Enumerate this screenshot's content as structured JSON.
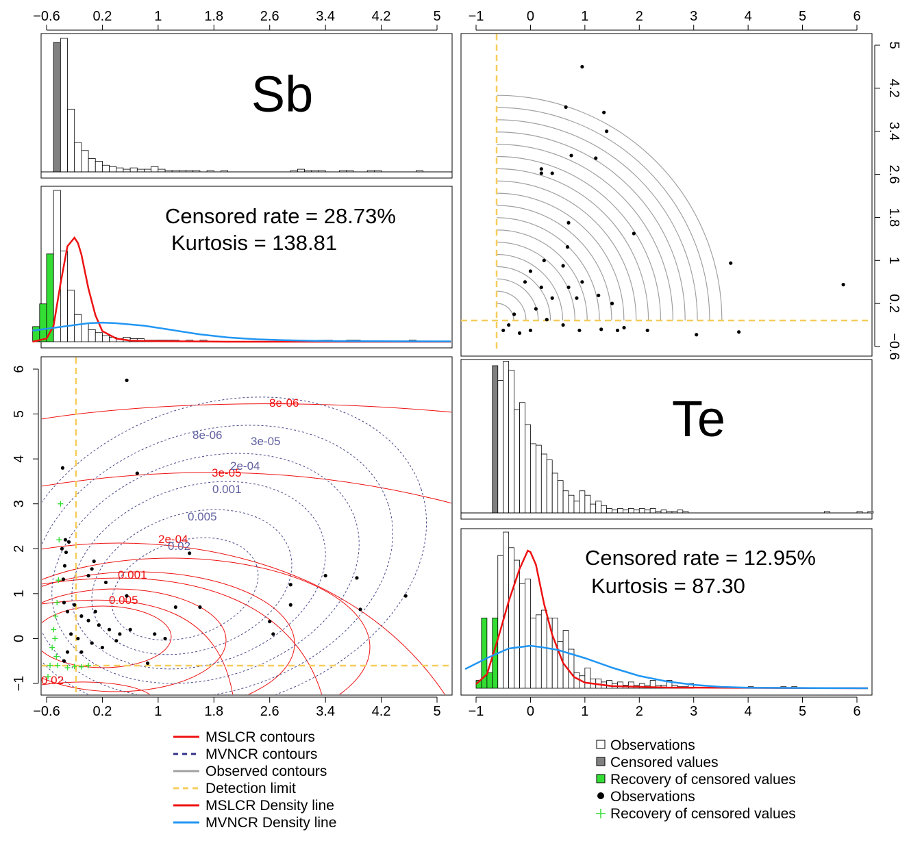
{
  "chart_data": [
    {
      "id": "sb-histogram-observed",
      "type": "bar",
      "title": "Sb",
      "xticks": [
        "-0.6",
        "0.2",
        "1",
        "1.8",
        "2.6",
        "3.4",
        "4.2",
        "5"
      ],
      "xlim": [
        -0.6,
        5.2
      ],
      "bin_width": 0.1,
      "bins_start": -0.5,
      "censored_bins": [
        -0.5
      ],
      "heights": [
        0.97,
        1.0,
        0.47,
        0.22,
        0.16,
        0.1,
        0.08,
        0.05,
        0.04,
        0.03,
        0.02,
        0.03,
        0.02,
        0.02,
        0.04,
        0.02,
        0.01,
        0.01,
        0.01,
        0.01,
        0.01,
        0,
        0.01,
        0,
        0.01,
        0,
        0,
        0,
        0,
        0,
        0,
        0,
        0,
        0,
        0.01,
        0.02,
        0.01,
        0.01,
        0.01,
        0,
        0,
        0.01,
        0.01,
        0,
        0,
        0.01,
        0.01,
        0,
        0,
        0,
        0,
        0,
        0.01
      ]
    },
    {
      "id": "sb-histogram-recovered",
      "type": "bar",
      "annotations": [
        "Censored rate = 28.73%",
        "Kurtosis = 138.81"
      ],
      "bin_width": 0.1,
      "bins_start": -0.8,
      "recovered_bins": [
        -0.8,
        -0.7,
        -0.6
      ],
      "heights": [
        0.1,
        0.25,
        0.58,
        1.0,
        0.6,
        0.34,
        0.18,
        0.12,
        0.08,
        0.06,
        0.04,
        0.03,
        0.02,
        0.03,
        0.02,
        0.02,
        0.01,
        0.01,
        0.01,
        0.01,
        0.01,
        0,
        0.01,
        0,
        0.01,
        0,
        0,
        0,
        0,
        0,
        0,
        0,
        0,
        0,
        0,
        0.01,
        0.01,
        0.01,
        0.01,
        0,
        0,
        0.01,
        0.01,
        0,
        0,
        0.01,
        0.01,
        0,
        0,
        0,
        0,
        0,
        0,
        0,
        0.01
      ],
      "series": [
        {
          "name": "MSLCR Density line",
          "color": "#ee1111",
          "x": [
            -0.8,
            -0.6,
            -0.5,
            -0.4,
            -0.3,
            -0.2,
            -0.15,
            -0.1,
            0.0,
            0.1,
            0.2,
            0.4,
            0.6,
            1.0,
            2.0,
            5.2
          ],
          "y": [
            0.0,
            0.03,
            0.15,
            0.55,
            0.9,
            0.98,
            0.93,
            0.82,
            0.5,
            0.25,
            0.1,
            0.03,
            0.01,
            0.005,
            0.0,
            0.0
          ]
        },
        {
          "name": "MVNCR Density line",
          "color": "#2196f3",
          "x": [
            -0.8,
            -0.4,
            0.0,
            0.2,
            0.4,
            0.8,
            1.2,
            1.6,
            2.0,
            2.4,
            2.8,
            3.2,
            3.6,
            4.0,
            5.2
          ],
          "y": [
            0.09,
            0.12,
            0.15,
            0.155,
            0.15,
            0.13,
            0.095,
            0.06,
            0.035,
            0.02,
            0.012,
            0.008,
            0.005,
            0.004,
            0.003
          ]
        }
      ]
    },
    {
      "id": "sb-te-scatter-contours",
      "type": "scatter",
      "xticks": [
        "-0.6",
        "0.2",
        "1",
        "1.8",
        "2.6",
        "3.4",
        "4.2",
        "5"
      ],
      "yticks": [
        "-1",
        "0",
        "1",
        "2",
        "3",
        "4",
        "5",
        "6"
      ],
      "xlim": [
        -0.6,
        5.2
      ],
      "ylim": [
        -1.2,
        6.2
      ],
      "detection_limit": {
        "x": -0.4,
        "y": -0.6
      },
      "mslcr_contour_labels": [
        "8e-06",
        "3e-05",
        "2e-04",
        "0.001",
        "0.005",
        "0.02"
      ],
      "mvncr_contour_labels": [
        "8e-06",
        "3e-05",
        "2e-04",
        "0.001",
        "0.005",
        "0.02"
      ],
      "observations": [
        [
          0.55,
          5.75
        ],
        [
          -0.37,
          3.8
        ],
        [
          0.7,
          3.68
        ],
        [
          -0.33,
          2.2
        ],
        [
          -0.28,
          2.15
        ],
        [
          -0.38,
          2.0
        ],
        [
          -0.32,
          1.92
        ],
        [
          -0.34,
          1.62
        ],
        [
          -0.36,
          1.32
        ],
        [
          0.08,
          1.72
        ],
        [
          0.05,
          1.55
        ],
        [
          0.0,
          1.4
        ],
        [
          0.25,
          1.25
        ],
        [
          1.45,
          1.9
        ],
        [
          3.85,
          1.35
        ],
        [
          3.4,
          1.4
        ],
        [
          2.9,
          1.2
        ],
        [
          2.9,
          0.75
        ],
        [
          2.6,
          0.38
        ],
        [
          2.65,
          0.1
        ],
        [
          3.9,
          0.65
        ],
        [
          4.55,
          0.95
        ],
        [
          1.25,
          0.7
        ],
        [
          1.6,
          0.7
        ],
        [
          0.55,
          0.95
        ],
        [
          0.95,
          0.1
        ],
        [
          1.1,
          0.0
        ],
        [
          0.85,
          -0.55
        ],
        [
          -0.35,
          0.8
        ],
        [
          -0.3,
          0.6
        ],
        [
          -0.2,
          0.75
        ],
        [
          -0.1,
          0.5
        ],
        [
          0.0,
          0.4
        ],
        [
          0.15,
          0.3
        ],
        [
          0.3,
          0.2
        ],
        [
          0.45,
          0.1
        ],
        [
          0.6,
          0.2
        ],
        [
          -0.25,
          0.1
        ],
        [
          -0.15,
          0.0
        ],
        [
          0.05,
          -0.1
        ],
        [
          0.2,
          -0.2
        ],
        [
          0.4,
          -0.05
        ],
        [
          -0.3,
          -0.3
        ],
        [
          -0.35,
          -0.5
        ],
        [
          -0.1,
          -0.3
        ],
        [
          0.1,
          0.6
        ]
      ],
      "recovered": [
        [
          -0.4,
          3.0
        ],
        [
          -0.42,
          2.2
        ],
        [
          -0.43,
          1.3
        ],
        [
          -0.45,
          0.8
        ],
        [
          -0.47,
          0.5
        ],
        [
          -0.5,
          0.2
        ],
        [
          -0.48,
          0.0
        ],
        [
          -0.52,
          -0.2
        ],
        [
          -0.46,
          -0.4
        ],
        [
          -0.55,
          -0.6
        ],
        [
          -0.58,
          -0.85
        ],
        [
          -0.44,
          -0.6
        ],
        [
          -0.3,
          -0.65
        ],
        [
          -0.2,
          -0.62
        ],
        [
          -0.1,
          -0.63
        ],
        [
          0.0,
          -0.6
        ]
      ]
    },
    {
      "id": "te-sb-scatter-observed",
      "type": "scatter",
      "xticks": [
        "-1",
        "0",
        "1",
        "2",
        "3",
        "4",
        "5",
        "6"
      ],
      "yticks": [
        "-0.6",
        "0.2",
        "1",
        "1.8",
        "2.6",
        "3.4",
        "4.2",
        "5"
      ],
      "xlim": [
        -1.2,
        6.2
      ],
      "ylim": [
        -0.8,
        5.2
      ],
      "detection_limit": {
        "x": -0.6,
        "y": -0.4
      },
      "observations": [
        [
          0.95,
          4.6
        ],
        [
          0.65,
          3.85
        ],
        [
          1.35,
          3.75
        ],
        [
          1.4,
          3.4
        ],
        [
          0.75,
          2.95
        ],
        [
          1.2,
          2.9
        ],
        [
          0.2,
          2.7
        ],
        [
          0.2,
          2.62
        ],
        [
          0.4,
          2.62
        ],
        [
          0.7,
          1.7
        ],
        [
          1.9,
          1.5
        ],
        [
          0.68,
          1.25
        ],
        [
          5.75,
          0.55
        ],
        [
          3.68,
          0.95
        ],
        [
          3.83,
          -0.33
        ],
        [
          3.05,
          -0.38
        ],
        [
          2.15,
          -0.3
        ],
        [
          1.72,
          -0.25
        ],
        [
          1.6,
          -0.3
        ],
        [
          1.3,
          -0.28
        ],
        [
          1.25,
          0.35
        ],
        [
          1.5,
          0.2
        ],
        [
          0.95,
          0.6
        ],
        [
          0.85,
          0.3
        ],
        [
          0.7,
          0.5
        ],
        [
          0.6,
          0.9
        ],
        [
          0.25,
          1.0
        ],
        [
          0.0,
          0.8
        ],
        [
          -0.1,
          0.6
        ],
        [
          0.2,
          0.5
        ],
        [
          0.4,
          0.3
        ],
        [
          0.1,
          0.1
        ],
        [
          -0.3,
          0.0
        ],
        [
          -0.5,
          -0.3
        ],
        [
          -0.4,
          -0.2
        ],
        [
          0.3,
          -0.1
        ],
        [
          0.6,
          -0.2
        ],
        [
          0.9,
          -0.3
        ],
        [
          -0.2,
          -0.35
        ],
        [
          0.0,
          -0.3
        ]
      ],
      "contour_radii": [
        0.35,
        0.6,
        0.85,
        1.1,
        1.35,
        1.6,
        1.85,
        2.1,
        2.35,
        2.6,
        2.85,
        3.1,
        3.35,
        3.6,
        3.85,
        4.1,
        4.35,
        4.6
      ]
    },
    {
      "id": "te-histogram-observed",
      "type": "bar",
      "title": "Te",
      "bin_width": 0.1,
      "bins_start": -0.7,
      "censored_bins": [
        -0.7
      ],
      "heights": [
        1.0,
        0.9,
        1.03,
        0.97,
        0.7,
        0.75,
        0.6,
        0.47,
        0.46,
        0.4,
        0.36,
        0.27,
        0.22,
        0.15,
        0.12,
        0.08,
        0.15,
        0.12,
        0.06,
        0.08,
        0.05,
        0.03,
        0.02,
        0.03,
        0.02,
        0.03,
        0.02,
        0.03,
        0.02,
        0.03,
        0.01,
        0.02,
        0.01,
        0.01,
        0.02,
        0.01,
        0,
        0,
        0,
        0,
        0,
        0,
        0,
        0,
        0,
        0,
        0,
        0,
        0,
        0,
        0,
        0,
        0,
        0,
        0,
        0,
        0,
        0,
        0,
        0,
        0,
        0.01,
        0,
        0,
        0,
        0,
        0,
        0.01,
        0,
        0.01,
        0,
        0,
        0,
        0,
        0,
        0,
        0,
        0,
        0,
        0,
        0,
        0,
        0,
        0,
        0,
        0,
        0,
        0,
        0,
        0,
        0,
        0,
        0,
        0,
        0,
        0,
        0,
        0.01
      ]
    },
    {
      "id": "te-histogram-recovered",
      "type": "bar",
      "annotations": [
        "Censored rate = 12.95%",
        "Kurtosis = 87.30"
      ],
      "bin_width": 0.1,
      "bins_start": -1.0,
      "recovered_bins": [
        -1.0,
        -0.9,
        -0.8,
        -0.7
      ],
      "heights": [
        0.05,
        0.45,
        0.1,
        0.45,
        0.85,
        1.0,
        0.9,
        0.82,
        0.67,
        0.7,
        0.45,
        0.47,
        0.5,
        0.45,
        0.45,
        0.3,
        0.37,
        0.25,
        0.1,
        0.08,
        0.13,
        0.06,
        0.06,
        0.04,
        0.05,
        0.03,
        0.04,
        0.02,
        0.04,
        0.02,
        0.03,
        0.02,
        0.05,
        0.02,
        0.02,
        0.05,
        0.02,
        0.01,
        0.01,
        0.03,
        0,
        0,
        0,
        0,
        0,
        0,
        0,
        0,
        0,
        0,
        0.01,
        0,
        0,
        0,
        0,
        0,
        0.01,
        0,
        0.01,
        0,
        0,
        0,
        0,
        0,
        0,
        0,
        0,
        0,
        0,
        0,
        0,
        0,
        0,
        0,
        0,
        0,
        0,
        0,
        0,
        0,
        0,
        0,
        0,
        0,
        0,
        0,
        0,
        0.01
      ],
      "series": [
        {
          "name": "MSLCR Density line",
          "color": "#ee1111",
          "x": [
            -1.0,
            -0.8,
            -0.6,
            -0.4,
            -0.2,
            -0.05,
            0.0,
            0.1,
            0.25,
            0.4,
            0.6,
            0.8,
            1.0,
            1.5,
            2.5,
            6.2
          ],
          "y": [
            0.03,
            0.1,
            0.35,
            0.62,
            0.85,
            0.98,
            0.97,
            0.88,
            0.6,
            0.38,
            0.18,
            0.08,
            0.04,
            0.015,
            0.005,
            0.0
          ]
        },
        {
          "name": "MVNCR Density line",
          "color": "#2196f3",
          "x": [
            -1.2,
            -0.8,
            -0.4,
            0.0,
            0.2,
            0.5,
            1.0,
            1.5,
            2.0,
            2.5,
            3.0,
            3.5,
            4.0,
            5.0,
            6.2
          ],
          "y": [
            0.14,
            0.22,
            0.29,
            0.31,
            0.3,
            0.28,
            0.22,
            0.15,
            0.09,
            0.05,
            0.025,
            0.01,
            0.004,
            0.002,
            0.0
          ]
        }
      ]
    }
  ],
  "legend_left": [
    {
      "label": "MSLCR contours",
      "color": "#ee1111",
      "style": "solid"
    },
    {
      "label": "MVNCR contours",
      "color": "#333388",
      "style": "dashed"
    },
    {
      "label": "Observed contours",
      "color": "#a0a0a0",
      "style": "solid"
    },
    {
      "label": "Detection limit",
      "color": "#f5cd5b",
      "style": "dashed"
    },
    {
      "label": "MSLCR Density line",
      "color": "#ee1111",
      "style": "solid"
    },
    {
      "label": "MVNCR Density line",
      "color": "#2196f3",
      "style": "solid"
    }
  ],
  "legend_right": [
    {
      "label": "Observations",
      "marker": "open-square",
      "color": "#ffffff"
    },
    {
      "label": "Censored values",
      "marker": "filled-square",
      "color": "#808080"
    },
    {
      "label": "Recovery of censored values",
      "marker": "filled-square",
      "color": "#33dd33"
    },
    {
      "label": "Observations",
      "marker": "dot",
      "color": "#000000"
    },
    {
      "label": "Recovery of censored values",
      "marker": "plus",
      "color": "#33dd33"
    }
  ],
  "colors": {
    "censored": "#808080",
    "recovered": "#33dd33",
    "mslcr": "#ee1111",
    "mvncr": "#2196f3",
    "mvncr_contour": "#4a4a8c",
    "observed_contour": "#a0a0a0",
    "detection_limit": "#f5cd5b"
  }
}
